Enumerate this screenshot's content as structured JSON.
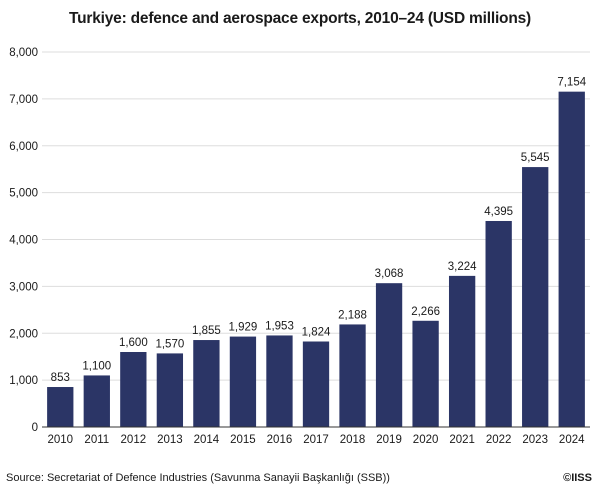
{
  "title": "Turkiye: defence and aerospace exports, 2010–24 (USD millions)",
  "source": "Source: Secretariat of Defence Industries (Savunma Sanayii Başkanlığı (SSB))",
  "copyright": "©IISS",
  "colors": {
    "bar": "#2b3566",
    "axis": "#333333",
    "grid": "#dddddd"
  },
  "chart_data": {
    "type": "bar",
    "title": "Turkiye: defence and aerospace exports, 2010–24 (USD millions)",
    "categories": [
      "2010",
      "2011",
      "2012",
      "2013",
      "2014",
      "2015",
      "2016",
      "2017",
      "2018",
      "2019",
      "2020",
      "2021",
      "2022",
      "2023",
      "2024"
    ],
    "values": [
      853,
      1100,
      1600,
      1570,
      1855,
      1929,
      1953,
      1824,
      2188,
      3068,
      2266,
      3224,
      4395,
      5545,
      7154
    ],
    "value_labels": [
      "853",
      "1,100",
      "1,600",
      "1,570",
      "1,855",
      "1,929",
      "1,953",
      "1,824",
      "2,188",
      "3,068",
      "2,266",
      "3,224",
      "4,395",
      "5,545",
      "7,154"
    ],
    "ylim": [
      0,
      8000
    ],
    "yticks": [
      0,
      1000,
      2000,
      3000,
      4000,
      5000,
      6000,
      7000,
      8000
    ],
    "ytick_labels": [
      "0",
      "1,000",
      "2,000",
      "3,000",
      "4,000",
      "5,000",
      "6,000",
      "7,000",
      "8,000"
    ],
    "grid": true,
    "xlabel": "",
    "ylabel": ""
  }
}
